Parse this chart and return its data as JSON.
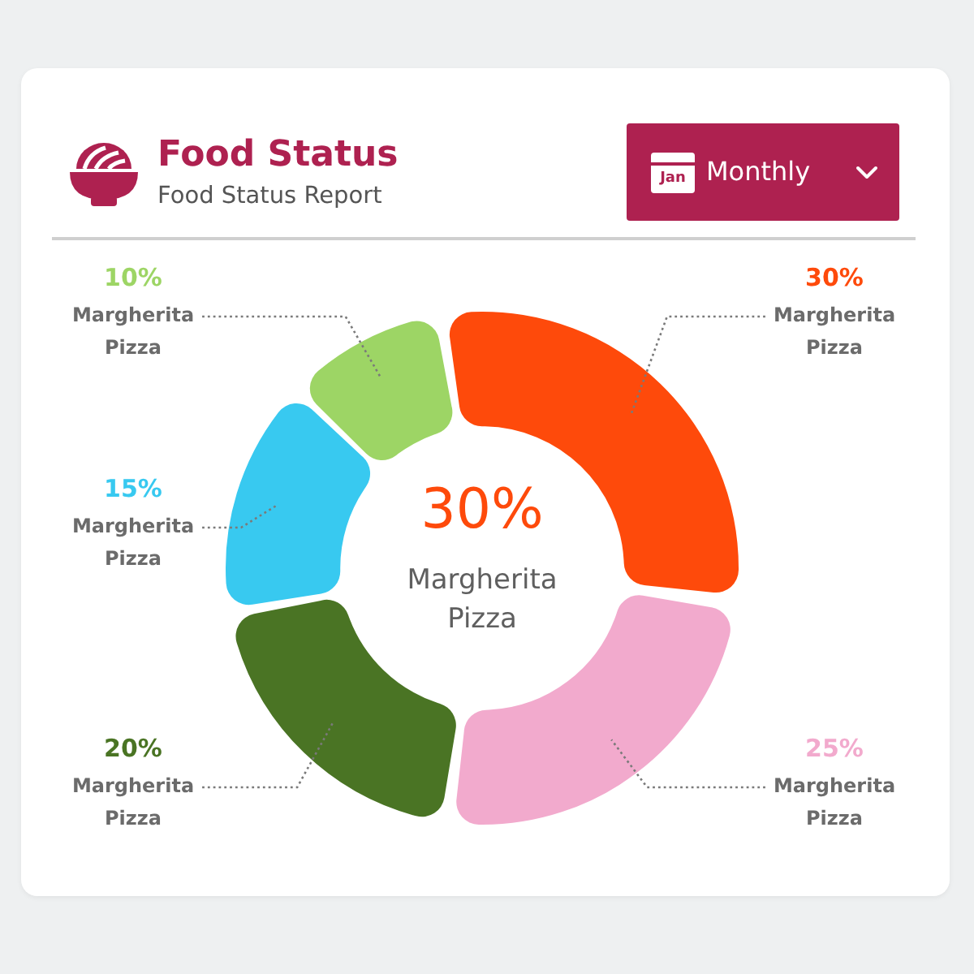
{
  "chart_data": {
    "type": "donut",
    "title": "Food Status",
    "subtitle": "Food Status Report",
    "categories": [
      "Margherita Pizza",
      "Margherita Pizza",
      "Margherita Pizza",
      "Margherita Pizza",
      "Margherita Pizza"
    ],
    "values": [
      30,
      25,
      20,
      15,
      10
    ],
    "colors": [
      "#fe4a0b",
      "#f2aacd",
      "#4a7424",
      "#38c9f0",
      "#9dd565"
    ],
    "value_labels": [
      "30%",
      "25%",
      "20%",
      "15%",
      "10%"
    ],
    "annotations": [
      "30%",
      "Margherita Pizza",
      "Monthly",
      "Jan"
    ]
  }
}
